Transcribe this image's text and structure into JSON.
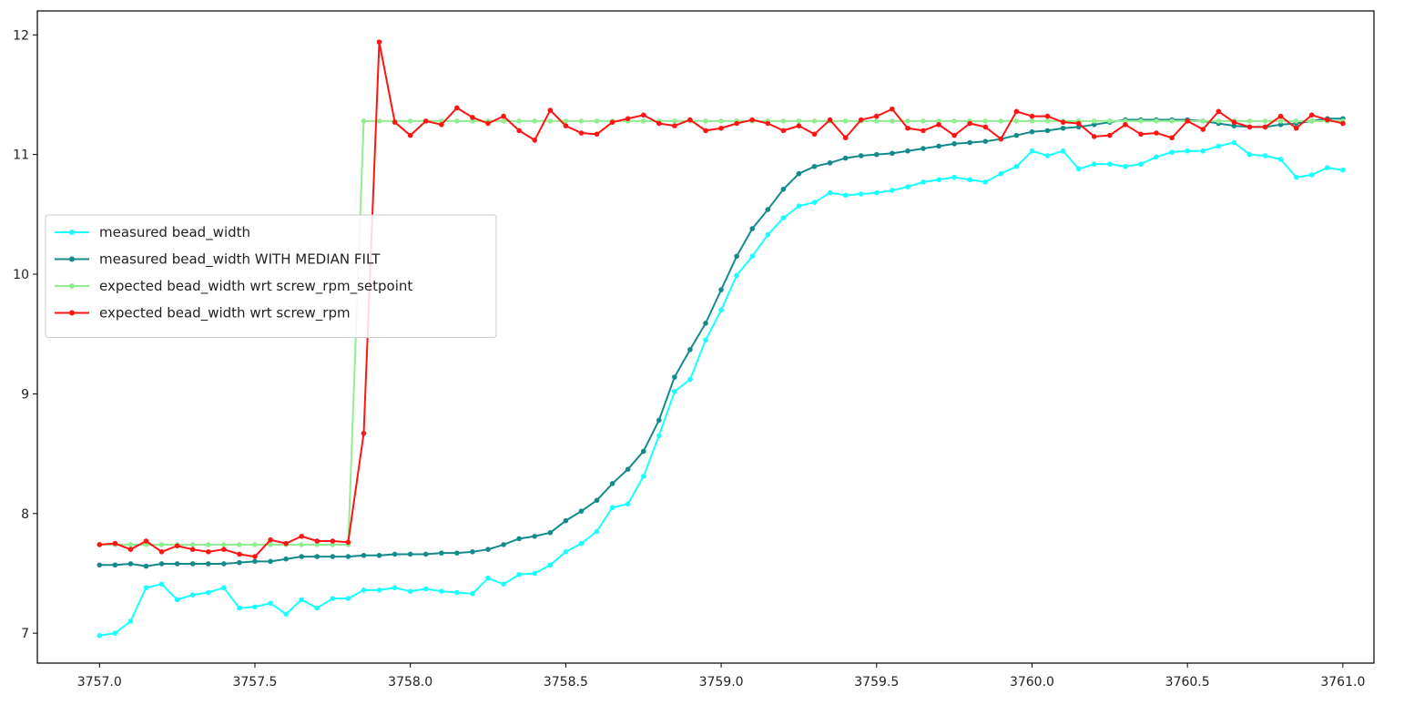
{
  "chart_data": {
    "type": "line",
    "title": "",
    "xlabel": "",
    "ylabel": "",
    "xlim": [
      3756.8,
      3761.1
    ],
    "ylim": [
      6.75,
      12.2
    ],
    "xticks": [
      3757.0,
      3757.5,
      3758.0,
      3758.5,
      3759.0,
      3759.5,
      3760.0,
      3760.5,
      3761.0
    ],
    "xtick_labels": [
      "3757.0",
      "3757.5",
      "3758.0",
      "3758.5",
      "3759.0",
      "3759.5",
      "3760.0",
      "3760.5",
      "3761.0"
    ],
    "yticks": [
      7,
      8,
      9,
      10,
      11,
      12
    ],
    "ytick_labels": [
      "7",
      "8",
      "9",
      "10",
      "11",
      "12"
    ],
    "grid": false,
    "legend": {
      "placement": "center-left",
      "entries": [
        "measured bead_width",
        "measured bead_width WITH MEDIAN FILT",
        "expected bead_width wrt screw_rpm_setpoint",
        "expected bead_width wrt screw_rpm"
      ]
    },
    "x_start": 3757.0,
    "x_step": 0.05,
    "series": [
      {
        "name": "measured bead_width",
        "color": "#19ffff",
        "values": [
          6.98,
          7.0,
          7.1,
          7.38,
          7.41,
          7.28,
          7.32,
          7.34,
          7.38,
          7.21,
          7.22,
          7.25,
          7.16,
          7.28,
          7.21,
          7.29,
          7.29,
          7.36,
          7.36,
          7.38,
          7.35,
          7.37,
          7.35,
          7.34,
          7.33,
          7.46,
          7.41,
          7.49,
          7.5,
          7.57,
          7.68,
          7.75,
          7.85,
          8.05,
          8.08,
          8.31,
          8.65,
          9.02,
          9.12,
          9.45,
          9.7,
          9.99,
          10.15,
          10.33,
          10.47,
          10.57,
          10.6,
          10.68,
          10.66,
          10.67,
          10.68,
          10.7,
          10.73,
          10.77,
          10.79,
          10.81,
          10.79,
          10.77,
          10.84,
          10.9,
          11.03,
          10.99,
          11.03,
          10.88,
          10.92,
          10.92,
          10.9,
          10.92,
          10.98,
          11.02,
          11.03,
          11.03,
          11.07,
          11.1,
          11.0,
          10.99,
          10.96,
          10.81,
          10.83,
          10.89,
          10.87
        ]
      },
      {
        "name": "measured bead_width WITH MEDIAN FILT",
        "color": "#138b8b",
        "values": [
          7.57,
          7.57,
          7.58,
          7.56,
          7.58,
          7.58,
          7.58,
          7.58,
          7.58,
          7.59,
          7.6,
          7.6,
          7.62,
          7.64,
          7.64,
          7.64,
          7.64,
          7.65,
          7.65,
          7.66,
          7.66,
          7.66,
          7.67,
          7.67,
          7.68,
          7.7,
          7.74,
          7.79,
          7.81,
          7.84,
          7.94,
          8.02,
          8.11,
          8.25,
          8.37,
          8.52,
          8.78,
          9.14,
          9.37,
          9.59,
          9.87,
          10.15,
          10.38,
          10.54,
          10.71,
          10.84,
          10.9,
          10.93,
          10.97,
          10.99,
          11.0,
          11.01,
          11.03,
          11.05,
          11.07,
          11.09,
          11.1,
          11.11,
          11.13,
          11.16,
          11.19,
          11.2,
          11.22,
          11.23,
          11.25,
          11.27,
          11.29,
          11.29,
          11.29,
          11.29,
          11.29,
          11.28,
          11.26,
          11.24,
          11.23,
          11.23,
          11.25,
          11.26,
          11.28,
          11.3,
          11.3
        ]
      },
      {
        "name": "expected bead_width wrt screw_rpm_setpoint",
        "color": "#90ee90",
        "values": [
          7.74,
          7.74,
          7.74,
          7.74,
          7.74,
          7.74,
          7.74,
          7.74,
          7.74,
          7.74,
          7.74,
          7.74,
          7.74,
          7.74,
          7.74,
          7.74,
          7.74,
          11.28,
          11.28,
          11.28,
          11.28,
          11.28,
          11.28,
          11.28,
          11.28,
          11.28,
          11.28,
          11.28,
          11.28,
          11.28,
          11.28,
          11.28,
          11.28,
          11.28,
          11.28,
          11.28,
          11.28,
          11.28,
          11.28,
          11.28,
          11.28,
          11.28,
          11.28,
          11.28,
          11.28,
          11.28,
          11.28,
          11.28,
          11.28,
          11.28,
          11.28,
          11.28,
          11.28,
          11.28,
          11.28,
          11.28,
          11.28,
          11.28,
          11.28,
          11.28,
          11.28,
          11.28,
          11.28,
          11.28,
          11.28,
          11.28,
          11.28,
          11.28,
          11.28,
          11.28,
          11.28,
          11.28,
          11.28,
          11.28,
          11.28,
          11.28,
          11.28,
          11.28,
          11.28,
          11.28,
          11.28
        ]
      },
      {
        "name": "expected bead_width wrt screw_rpm",
        "color": "#ff1414",
        "values": [
          7.74,
          7.75,
          7.7,
          7.77,
          7.68,
          7.73,
          7.7,
          7.68,
          7.7,
          7.66,
          7.64,
          7.78,
          7.75,
          7.81,
          7.77,
          7.77,
          7.76,
          8.67,
          11.94,
          11.27,
          11.16,
          11.28,
          11.25,
          11.39,
          11.31,
          11.26,
          11.32,
          11.2,
          11.12,
          11.37,
          11.24,
          11.18,
          11.17,
          11.27,
          11.3,
          11.33,
          11.26,
          11.24,
          11.29,
          11.2,
          11.22,
          11.26,
          11.29,
          11.26,
          11.2,
          11.24,
          11.17,
          11.29,
          11.14,
          11.29,
          11.32,
          11.38,
          11.22,
          11.2,
          11.25,
          11.16,
          11.26,
          11.23,
          11.13,
          11.36,
          11.32,
          11.32,
          11.27,
          11.26,
          11.15,
          11.16,
          11.25,
          11.17,
          11.18,
          11.14,
          11.28,
          11.21,
          11.36,
          11.27,
          11.23,
          11.23,
          11.32,
          11.22,
          11.33,
          11.29,
          11.26
        ]
      }
    ]
  }
}
